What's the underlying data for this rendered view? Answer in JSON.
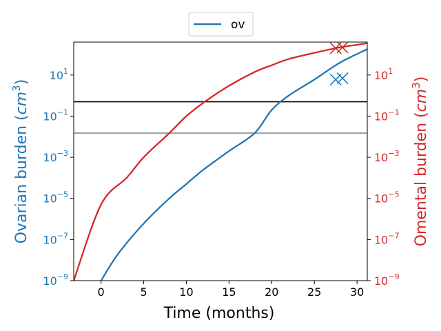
{
  "chart_data": {
    "type": "line",
    "xlabel": "Time (months)",
    "ylabel_left": "Ovarian burden (cm^3)",
    "ylabel_right": "Omental burden (cm^3)",
    "y_scale": "log",
    "xlim": [
      -3.2,
      31.2
    ],
    "ylim_left": [
      1e-09,
      400
    ],
    "ylim_right": [
      1e-09,
      400
    ],
    "x_ticks": [
      0,
      5,
      10,
      15,
      20,
      25,
      30
    ],
    "x_tick_labels": [
      "0",
      "5",
      "10",
      "15",
      "20",
      "25",
      "30"
    ],
    "y_ticks": [
      1e-09,
      1e-07,
      1e-05,
      0.001,
      0.1,
      10
    ],
    "y_tick_labels": [
      {
        "base": "10",
        "exp": "−9"
      },
      {
        "base": "10",
        "exp": "−7"
      },
      {
        "base": "10",
        "exp": "−5"
      },
      {
        "base": "10",
        "exp": "−3"
      },
      {
        "base": "10",
        "exp": "−1"
      },
      {
        "base": "10",
        "exp": "1"
      }
    ],
    "legend": {
      "position": "top-center",
      "entries": [
        "ov"
      ]
    },
    "series": [
      {
        "name": "ov",
        "axis": "left",
        "color": "#1f77b4",
        "x": [
          0,
          2,
          5,
          8,
          10,
          12,
          15,
          18,
          20,
          22,
          25,
          28,
          31.2
        ],
        "y": [
          1e-09,
          2e-08,
          6e-07,
          1e-05,
          5e-05,
          0.00025,
          0.002,
          0.015,
          0.2,
          1.0,
          6,
          40,
          180
        ]
      },
      {
        "name": "",
        "axis": "right",
        "color": "#d62728",
        "x": [
          -3.2,
          0,
          3,
          5,
          8,
          10,
          12,
          15,
          18,
          20,
          22,
          25,
          28,
          31.2
        ],
        "y": [
          1e-09,
          5e-06,
          0.0001,
          0.001,
          0.015,
          0.1,
          0.45,
          3,
          14,
          30,
          60,
          120,
          220,
          350
        ]
      }
    ],
    "hlines": [
      {
        "y": 0.5,
        "color": "#000000"
      },
      {
        "y": 0.015,
        "color": "#808080"
      }
    ],
    "markers": [
      {
        "x": 27.5,
        "y": 6,
        "axis": "left",
        "color": "#1f77b4",
        "symbol": "x"
      },
      {
        "x": 28.3,
        "y": 7,
        "axis": "left",
        "color": "#1f77b4",
        "symbol": "x"
      },
      {
        "x": 27.5,
        "y": 200,
        "axis": "right",
        "color": "#d62728",
        "symbol": "x"
      },
      {
        "x": 28.3,
        "y": 220,
        "axis": "right",
        "color": "#d62728",
        "symbol": "x"
      }
    ],
    "colors": {
      "left_axis": "#1f77b4",
      "right_axis": "#d62728",
      "frame": "#000000"
    }
  }
}
